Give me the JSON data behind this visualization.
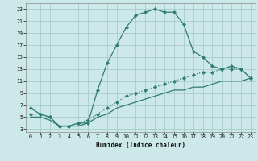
{
  "xlabel": "Humidex (Indice chaleur)",
  "background_color": "#cce8e8",
  "grid_color": "#aacccc",
  "line_color": "#2e7d6e",
  "xlim": [
    -0.5,
    23.5
  ],
  "ylim": [
    2.5,
    24
  ],
  "yticks": [
    3,
    5,
    7,
    9,
    11,
    13,
    15,
    17,
    19,
    21,
    23
  ],
  "xticks": [
    0,
    1,
    2,
    3,
    4,
    5,
    6,
    7,
    8,
    9,
    10,
    11,
    12,
    13,
    14,
    15,
    16,
    17,
    18,
    19,
    20,
    21,
    22,
    23
  ],
  "series1_x": [
    0,
    1,
    2,
    3,
    4,
    5,
    6,
    7,
    8,
    9,
    10,
    11,
    12,
    13,
    14,
    15,
    16,
    17,
    18,
    19,
    20,
    21,
    22,
    23
  ],
  "series1_y": [
    6.5,
    5.5,
    5.0,
    3.5,
    3.5,
    4.0,
    4.0,
    9.5,
    14.0,
    17.0,
    20.0,
    22.0,
    22.5,
    23.0,
    22.5,
    22.5,
    20.5,
    16.0,
    15.0,
    13.5,
    13.0,
    13.5,
    13.0,
    11.5
  ],
  "series2_x": [
    0,
    1,
    2,
    3,
    4,
    5,
    6,
    7,
    8,
    9,
    10,
    11,
    12,
    13,
    14,
    15,
    16,
    17,
    18,
    19,
    20,
    21,
    22,
    23
  ],
  "series2_y": [
    5.5,
    5.5,
    5.0,
    3.5,
    3.5,
    4.0,
    4.5,
    5.5,
    6.5,
    7.5,
    8.5,
    9.0,
    9.5,
    10.0,
    10.5,
    11.0,
    11.5,
    12.0,
    12.5,
    12.5,
    13.0,
    13.0,
    13.0,
    11.5
  ],
  "series3_x": [
    0,
    1,
    2,
    3,
    4,
    5,
    6,
    7,
    8,
    9,
    10,
    11,
    12,
    13,
    14,
    15,
    16,
    17,
    18,
    19,
    20,
    21,
    22,
    23
  ],
  "series3_y": [
    5.0,
    5.0,
    4.5,
    3.5,
    3.5,
    3.5,
    4.0,
    5.0,
    5.5,
    6.5,
    7.0,
    7.5,
    8.0,
    8.5,
    9.0,
    9.5,
    9.5,
    10.0,
    10.0,
    10.5,
    11.0,
    11.0,
    11.0,
    11.5
  ]
}
